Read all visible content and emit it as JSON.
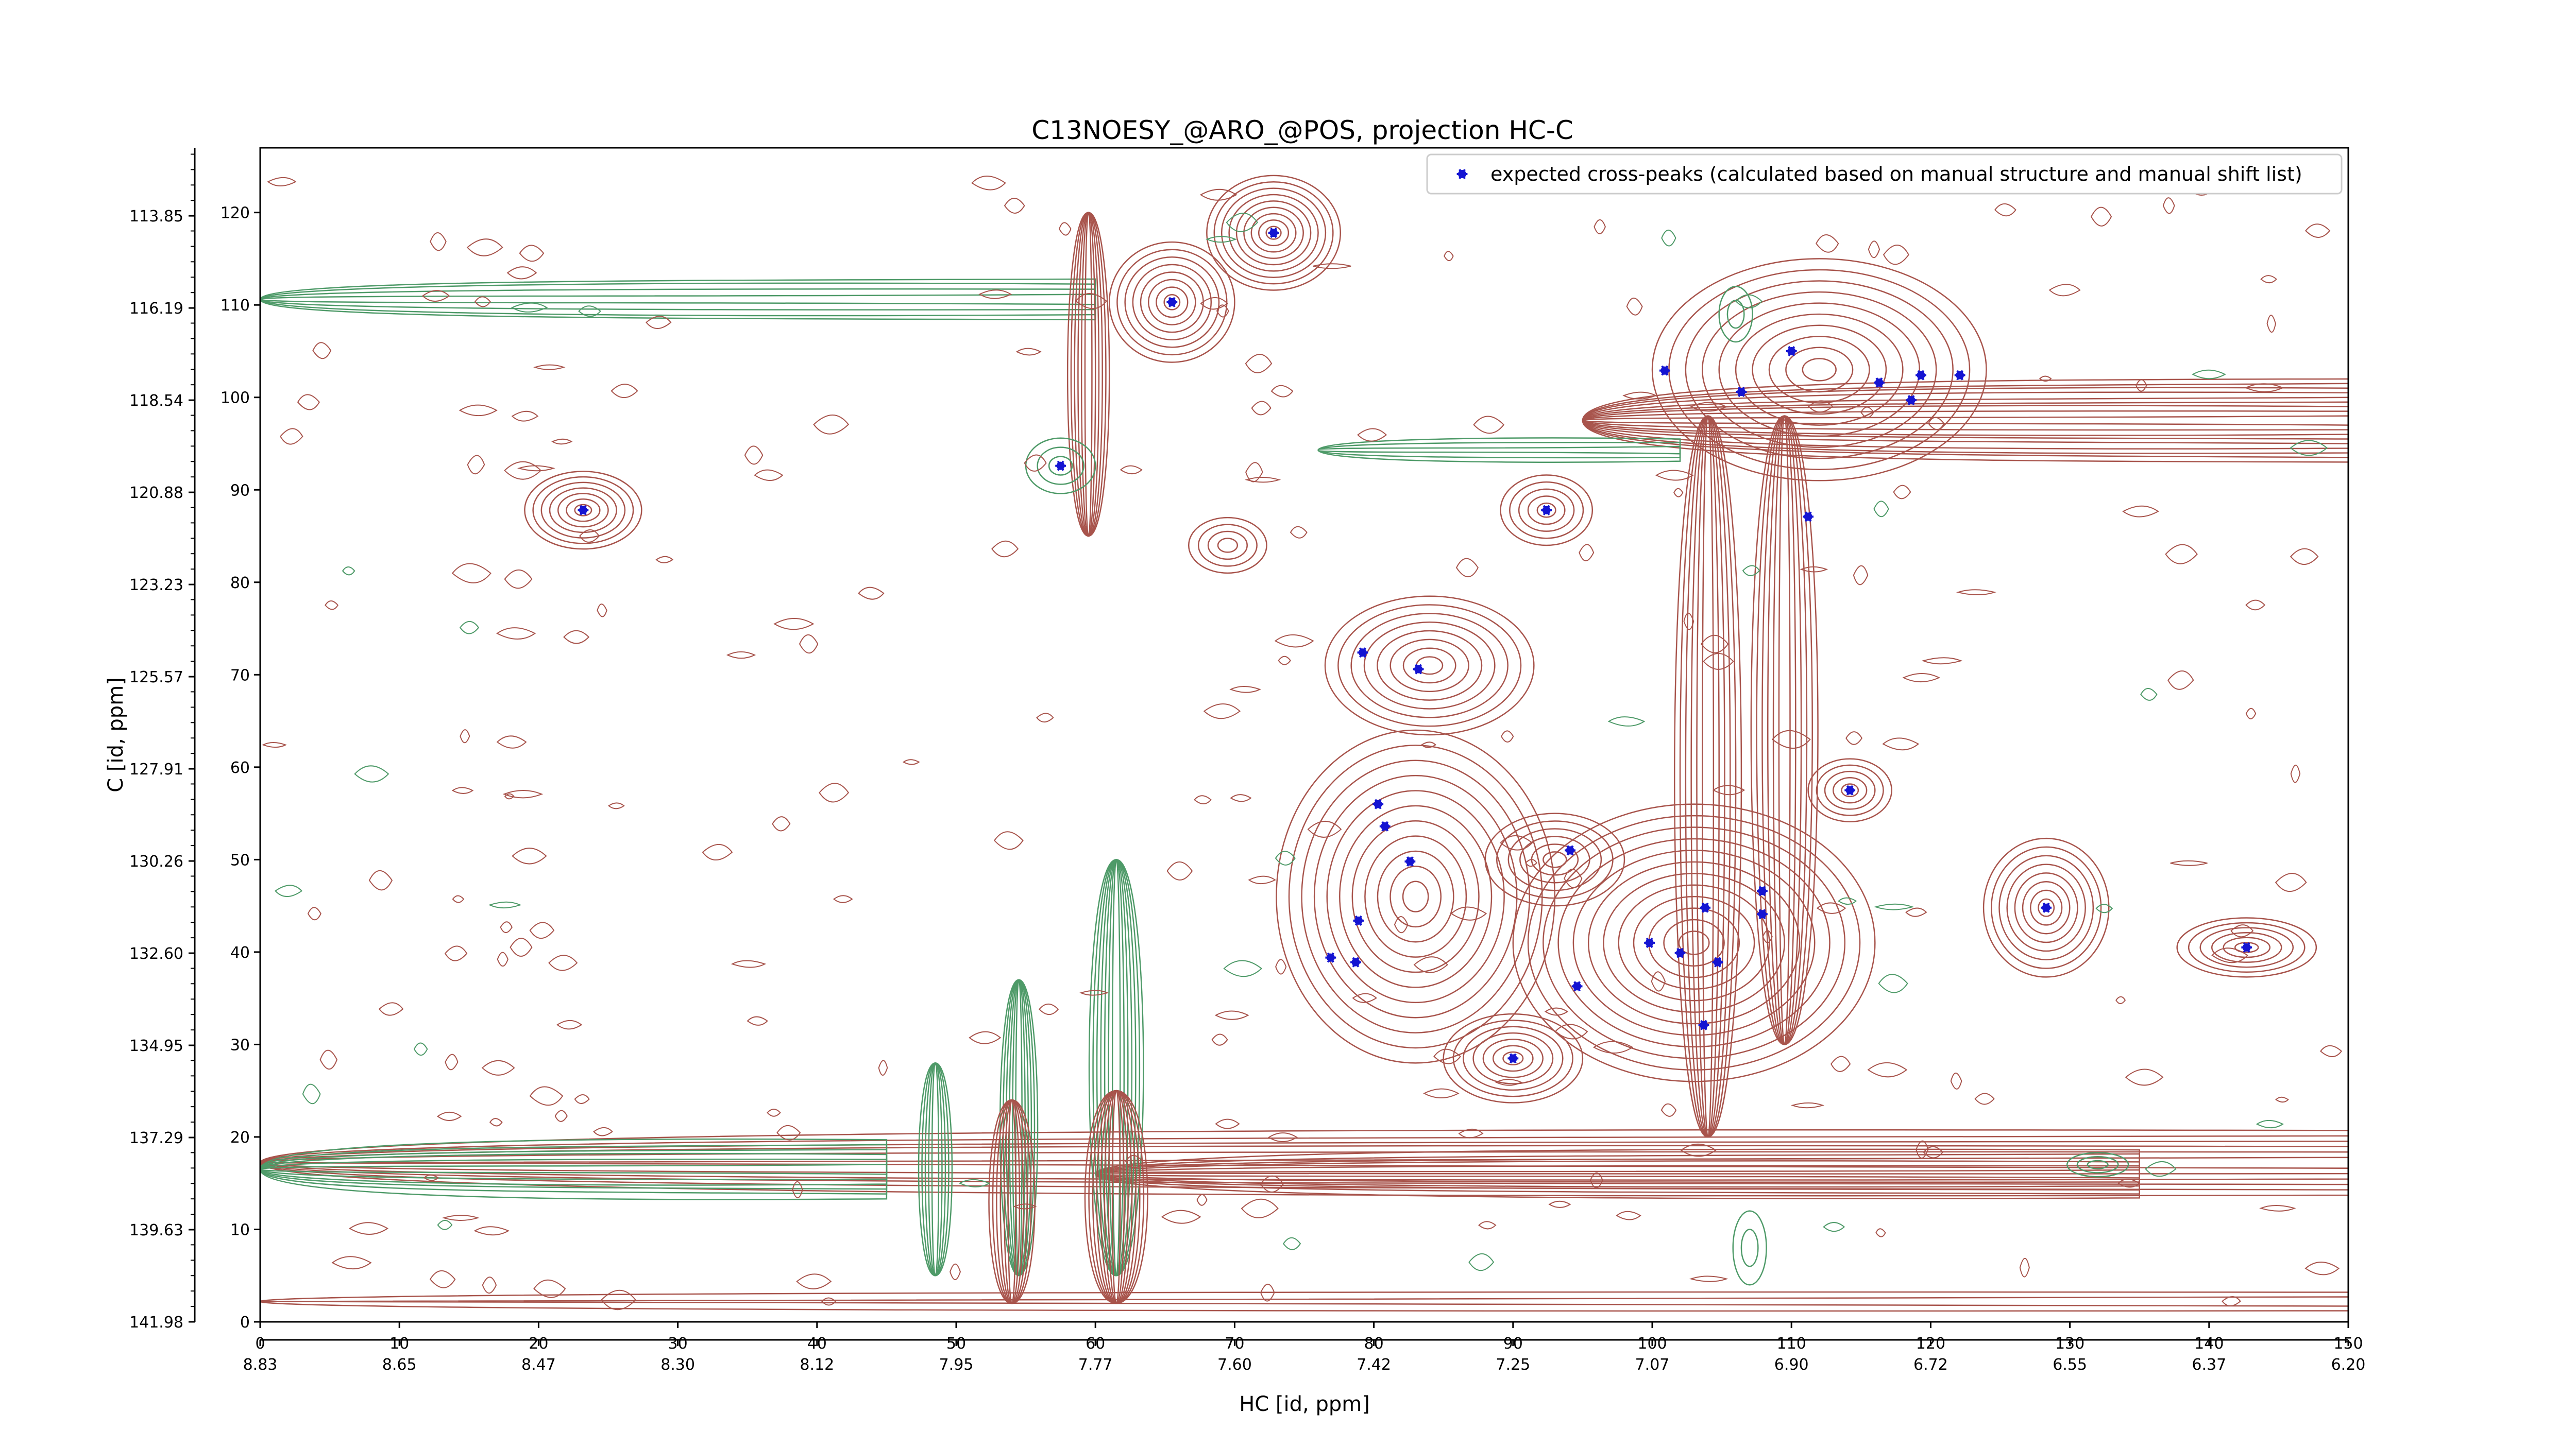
{
  "chart_data": {
    "type": "scatter",
    "title": "C13NOESY_@ARO_@POS, projection HC-C",
    "xlabel": "HC [id, ppm]",
    "ylabel": "C [id, ppm]",
    "xlim": [
      0,
      150
    ],
    "ylim": [
      0,
      127
    ],
    "x_ticks": [
      0,
      10,
      20,
      30,
      40,
      50,
      60,
      70,
      80,
      90,
      100,
      110,
      120,
      130,
      140,
      150
    ],
    "y_ticks": [
      0,
      10,
      20,
      30,
      40,
      50,
      60,
      70,
      80,
      90,
      100,
      110,
      120
    ],
    "x_ppm_ticks": [
      "8.83",
      "8.65",
      "8.47",
      "8.30",
      "8.12",
      "7.95",
      "7.77",
      "7.60",
      "7.42",
      "7.25",
      "7.07",
      "6.90",
      "6.72",
      "6.55",
      "6.37",
      "6.20"
    ],
    "y_ppm_ticks": [
      "141.98",
      "139.63",
      "137.29",
      "134.95",
      "132.60",
      "130.26",
      "127.91",
      "125.57",
      "123.23",
      "120.88",
      "118.54",
      "116.19",
      "113.85"
    ],
    "legend": {
      "label": "expected cross-peaks (calculated based on manual structure and manual shift list)",
      "placement": "upper-right"
    },
    "colors": {
      "marker": "#1414d2",
      "contour_positive": "#a8544c",
      "contour_negative": "#4e9a68"
    },
    "series": [
      {
        "name": "expected cross-peaks (calculated based on manual structure and manual shift list)",
        "points": [
          {
            "x": 23.2,
            "y": 87.8
          },
          {
            "x": 57.5,
            "y": 92.6
          },
          {
            "x": 65.5,
            "y": 110.3
          },
          {
            "x": 72.8,
            "y": 117.8
          },
          {
            "x": 100.9,
            "y": 102.9
          },
          {
            "x": 106.4,
            "y": 100.6
          },
          {
            "x": 110,
            "y": 105
          },
          {
            "x": 116.3,
            "y": 101.6
          },
          {
            "x": 118.6,
            "y": 99.7
          },
          {
            "x": 119.3,
            "y": 102.4
          },
          {
            "x": 122.1,
            "y": 102.4
          },
          {
            "x": 92.4,
            "y": 87.8
          },
          {
            "x": 111.2,
            "y": 87.1
          },
          {
            "x": 79.2,
            "y": 72.4
          },
          {
            "x": 83.2,
            "y": 70.6
          },
          {
            "x": 114.2,
            "y": 57.5
          },
          {
            "x": 80.3,
            "y": 56.0
          },
          {
            "x": 80.8,
            "y": 53.6
          },
          {
            "x": 82.6,
            "y": 49.8
          },
          {
            "x": 94.1,
            "y": 51.0
          },
          {
            "x": 78.9,
            "y": 43.4
          },
          {
            "x": 76.9,
            "y": 39.4
          },
          {
            "x": 78.7,
            "y": 38.9
          },
          {
            "x": 103.8,
            "y": 44.8
          },
          {
            "x": 107.9,
            "y": 46.6
          },
          {
            "x": 107.9,
            "y": 44.1
          },
          {
            "x": 99.8,
            "y": 41.0
          },
          {
            "x": 102.0,
            "y": 39.9
          },
          {
            "x": 104.7,
            "y": 38.9
          },
          {
            "x": 94.6,
            "y": 36.3
          },
          {
            "x": 103.7,
            "y": 32.1
          },
          {
            "x": 90.0,
            "y": 28.5
          },
          {
            "x": 128.3,
            "y": 44.8
          },
          {
            "x": 142.7,
            "y": 40.5
          }
        ]
      }
    ]
  }
}
